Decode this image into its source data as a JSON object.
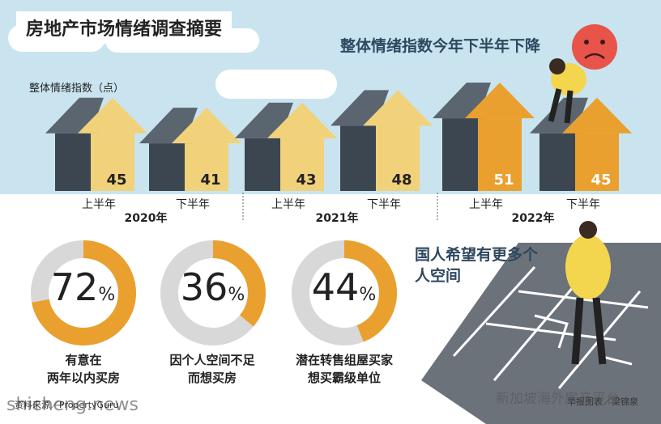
{
  "header": {
    "title": "房地产市场情绪调查摘要",
    "subtitle": "整体情绪指数今年下半年下降",
    "ylabel": "整体情绪指数（点）"
  },
  "chart_data": {
    "type": "bar",
    "categories": [
      "上半年",
      "下半年",
      "上半年",
      "下半年",
      "上半年",
      "下半年"
    ],
    "years": [
      "2020年",
      "2021年",
      "2022年"
    ],
    "values": [
      45,
      41,
      43,
      48,
      51,
      45
    ],
    "ylabel": "整体情绪指数（点）",
    "title": "整体情绪指数今年下半年下降",
    "colors": {
      "roof_dark": "#5a6570",
      "body_dark": "#3c4650",
      "arrow_light": "#f1d27a",
      "arrow_orange": "#eaa02e"
    }
  },
  "stats": [
    {
      "value": "72",
      "unit": "%",
      "fraction": 0.72,
      "caption": [
        "有意在",
        "两年以内买房"
      ]
    },
    {
      "value": "36",
      "unit": "%",
      "fraction": 0.36,
      "caption": [
        "因个人空间不足",
        "而想买房"
      ]
    },
    {
      "value": "44",
      "unit": "%",
      "fraction": 0.44,
      "caption": [
        "潜在转售组屋买家",
        "想买霸级单位"
      ]
    }
  ],
  "message": "国人希望有更多个人空间",
  "source": "资料来源／PropertyGuru",
  "credit": "早报图表／梁锦泉",
  "watermark_site": "shicheng.news",
  "watermark_account": "新加坡海外房产平台"
}
